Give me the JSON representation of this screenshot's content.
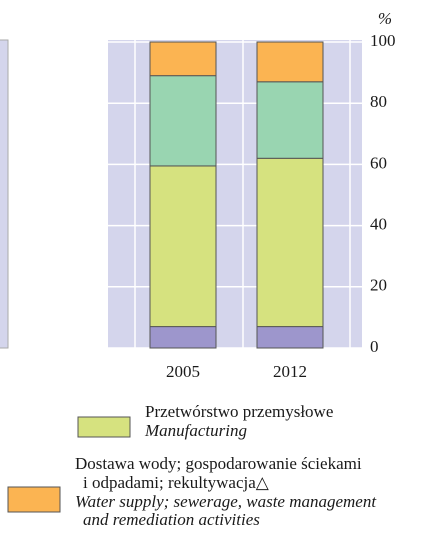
{
  "chart_data": {
    "type": "stacked_bar",
    "categories": [
      "2005",
      "2012"
    ],
    "series": [
      {
        "color": "#9d96cc",
        "values": [
          7,
          7
        ]
      },
      {
        "name": [
          "Przetwórstwo przemysłowe"
        ],
        "name_en": [
          "Manufacturing"
        ],
        "color": "#d6e27f",
        "values": [
          52.5,
          55
        ]
      },
      {
        "color": "#99d5b1",
        "values": [
          29.5,
          25
        ]
      },
      {
        "name": [
          "Dostawa wody; gospodarowanie ściekami",
          "i odpadami; rekultywacja△"
        ],
        "name_en": [
          "Water supply; sewerage, waste management",
          "and remediation activities"
        ],
        "color": "#fbb452",
        "values": [
          11,
          13
        ]
      }
    ],
    "ylabel": "%",
    "ylim": [
      0,
      100
    ],
    "yticks": [
      0,
      20,
      40,
      60,
      80,
      100
    ],
    "grid": true
  }
}
